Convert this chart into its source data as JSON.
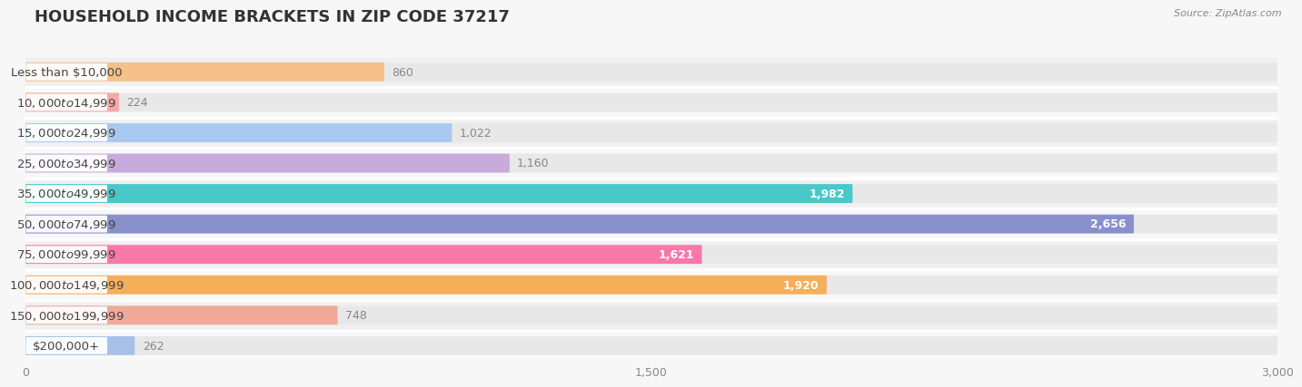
{
  "title": "HOUSEHOLD INCOME BRACKETS IN ZIP CODE 37217",
  "source": "Source: ZipAtlas.com",
  "categories": [
    "Less than $10,000",
    "$10,000 to $14,999",
    "$15,000 to $24,999",
    "$25,000 to $34,999",
    "$35,000 to $49,999",
    "$50,000 to $74,999",
    "$75,000 to $99,999",
    "$100,000 to $149,999",
    "$150,000 to $199,999",
    "$200,000+"
  ],
  "values": [
    860,
    224,
    1022,
    1160,
    1982,
    2656,
    1621,
    1920,
    748,
    262
  ],
  "bar_colors": [
    "#F5C08A",
    "#F4A8A8",
    "#A8C8F0",
    "#C8AADC",
    "#48C8C8",
    "#8890CC",
    "#F878A8",
    "#F5AE5A",
    "#F0A898",
    "#A8C0E8"
  ],
  "value_inside_color": "#ffffff",
  "value_outside_color": "#888888",
  "inside_threshold": 1500,
  "xlim_max": 3000,
  "xticks": [
    0,
    1500,
    3000
  ],
  "bg_color": "#f7f7f7",
  "bar_bg_color": "#e8e8e8",
  "row_bg_colors": [
    "#f0f0f0",
    "#f8f8f8"
  ],
  "title_fontsize": 13,
  "label_fontsize": 9.5,
  "value_fontsize": 9,
  "tick_fontsize": 9,
  "source_fontsize": 8
}
